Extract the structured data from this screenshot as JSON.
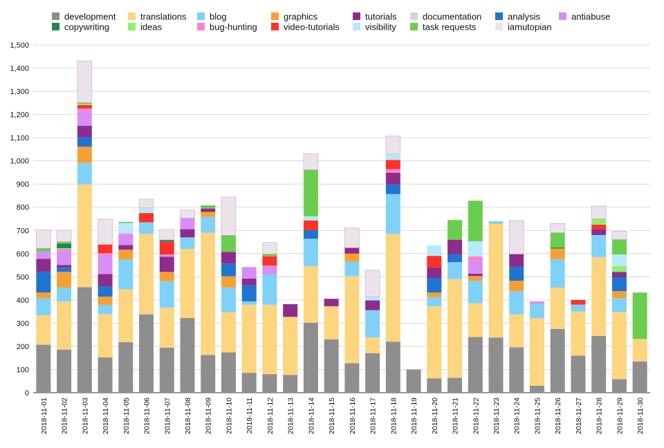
{
  "chart_data": {
    "type": "bar",
    "stacked": true,
    "title": "",
    "xlabel": "",
    "ylabel": "",
    "ylim": [
      0,
      1500
    ],
    "y_ticks": [
      0,
      100,
      200,
      300,
      400,
      500,
      600,
      700,
      800,
      900,
      1000,
      1100,
      1200,
      1300,
      1400,
      1500
    ],
    "y_tick_labels": [
      "0",
      "100",
      "200",
      "300",
      "400",
      "500",
      "600",
      "700",
      "800",
      "900",
      "1,000",
      "1,100",
      "1,200",
      "1,300",
      "1,400",
      "1,500"
    ],
    "grid": true,
    "legend_position": "top",
    "categories": [
      "2018-11-01",
      "2018-11-02",
      "2018-11-03",
      "2018-11-04",
      "2018-11-05",
      "2018-11-06",
      "2018-11-07",
      "2018-11-08",
      "2018-11-09",
      "2018-11-10",
      "2018-11-11",
      "2018-11-12",
      "2018-11-13",
      "2018-11-14",
      "2018-11-15",
      "2018-11-16",
      "2018-11-17",
      "2018-11-18",
      "2018-11-19",
      "2018-11-20",
      "2018-11-21",
      "2018-11-22",
      "2018-11-23",
      "2018-11-24",
      "2018-11-25",
      "2018-11-26",
      "2018-11-27",
      "2018-11-28",
      "2018-11-29",
      "2018-11-30"
    ],
    "series": [
      {
        "name": "development",
        "color": "#8e8e8e",
        "values": [
          207,
          186,
          455,
          152,
          218,
          338,
          194,
          322,
          163,
          174,
          86,
          80,
          77,
          302,
          230,
          127,
          170,
          220,
          100,
          62,
          64,
          240,
          238,
          196,
          30,
          275,
          160,
          245,
          58,
          135
        ]
      },
      {
        "name": "translations",
        "color": "#fcd57e",
        "values": [
          127,
          207,
          443,
          187,
          228,
          348,
          173,
          298,
          527,
          173,
          294,
          300,
          250,
          244,
          143,
          376,
          68,
          465,
          0,
          310,
          426,
          145,
          490,
          142,
          292,
          178,
          190,
          340,
          290,
          97
        ]
      },
      {
        "name": "blog",
        "color": "#7fd1f8",
        "values": [
          73,
          60,
          93,
          40,
          128,
          49,
          114,
          50,
          68,
          107,
          14,
          130,
          0,
          118,
          0,
          62,
          118,
          172,
          0,
          40,
          73,
          98,
          12,
          100,
          62,
          123,
          30,
          95,
          60,
          0
        ]
      },
      {
        "name": "graphics",
        "color": "#f6a033",
        "values": [
          25,
          68,
          70,
          35,
          43,
          0,
          40,
          0,
          22,
          48,
          0,
          0,
          0,
          0,
          0,
          35,
          0,
          0,
          0,
          20,
          0,
          20,
          0,
          45,
          0,
          46,
          0,
          0,
          30,
          0
        ]
      },
      {
        "name": "analysis",
        "color": "#1f74d0",
        "values": [
          90,
          18,
          40,
          45,
          0,
          0,
          0,
          0,
          0,
          55,
          70,
          0,
          0,
          37,
          0,
          0,
          0,
          40,
          0,
          63,
          35,
          0,
          0,
          60,
          0,
          0,
          0,
          0,
          60,
          0
        ]
      },
      {
        "name": "tutorials",
        "color": "#8e2c8c",
        "values": [
          55,
          12,
          50,
          53,
          20,
          0,
          65,
          35,
          15,
          50,
          28,
          0,
          55,
          0,
          32,
          25,
          42,
          52,
          0,
          45,
          62,
          10,
          0,
          55,
          0,
          0,
          0,
          25,
          23,
          0
        ]
      },
      {
        "name": "antiabuse",
        "color": "#d68ef5",
        "values": [
          33,
          60,
          65,
          80,
          45,
          0,
          10,
          48,
          0,
          0,
          50,
          38,
          0,
          0,
          0,
          0,
          0,
          0,
          0,
          0,
          0,
          55,
          0,
          0,
          10,
          0,
          0,
          0,
          0,
          0
        ]
      },
      {
        "name": "bug-hunting",
        "color": "#fc83d2",
        "values": [
          0,
          8,
          10,
          10,
          5,
          0,
          0,
          0,
          0,
          0,
          0,
          0,
          0,
          0,
          0,
          0,
          0,
          15,
          0,
          0,
          0,
          20,
          0,
          0,
          0,
          0,
          0,
          0,
          0,
          0
        ]
      },
      {
        "name": "video-tutorials",
        "color": "#fd3126",
        "values": [
          0,
          0,
          15,
          37,
          0,
          40,
          55,
          0,
          0,
          0,
          0,
          40,
          0,
          42,
          0,
          0,
          0,
          40,
          0,
          50,
          0,
          0,
          0,
          0,
          0,
          0,
          20,
          20,
          0,
          0
        ]
      },
      {
        "name": "ideas",
        "color": "#90f06a",
        "values": [
          0,
          4,
          5,
          0,
          0,
          0,
          0,
          0,
          5,
          0,
          0,
          0,
          0,
          0,
          0,
          0,
          0,
          0,
          0,
          0,
          0,
          0,
          0,
          0,
          0,
          0,
          0,
          25,
          25,
          0
        ]
      },
      {
        "name": "copywriting",
        "color": "#1c8a4f",
        "values": [
          0,
          20,
          0,
          0,
          0,
          0,
          8,
          0,
          3,
          0,
          0,
          0,
          0,
          0,
          0,
          0,
          0,
          0,
          0,
          0,
          0,
          0,
          0,
          0,
          0,
          5,
          0,
          0,
          0,
          0
        ]
      },
      {
        "name": "visibility",
        "color": "#b6e9fb",
        "values": [
          0,
          0,
          0,
          0,
          45,
          22,
          0,
          0,
          0,
          0,
          0,
          0,
          0,
          18,
          0,
          0,
          15,
          25,
          0,
          45,
          0,
          65,
          0,
          0,
          0,
          0,
          0,
          0,
          50,
          0
        ]
      },
      {
        "name": "task requests",
        "color": "#6acd4f",
        "values": [
          13,
          8,
          5,
          0,
          5,
          0,
          0,
          0,
          5,
          72,
          0,
          10,
          0,
          200,
          0,
          0,
          0,
          0,
          0,
          0,
          85,
          175,
          0,
          0,
          0,
          63,
          0,
          0,
          65,
          200
        ]
      },
      {
        "name": "documentation",
        "color": "#d5d5d5",
        "values": [
          0,
          0,
          0,
          0,
          0,
          0,
          0,
          0,
          0,
          0,
          0,
          0,
          0,
          0,
          0,
          0,
          0,
          0,
          0,
          0,
          0,
          0,
          0,
          0,
          0,
          0,
          0,
          0,
          0,
          0
        ]
      },
      {
        "name": "iamutopian",
        "color": "#ebe3ea",
        "values": [
          80,
          50,
          180,
          110,
          0,
          38,
          45,
          35,
          0,
          165,
          0,
          50,
          0,
          70,
          0,
          85,
          115,
          78,
          0,
          0,
          0,
          0,
          0,
          145,
          0,
          40,
          0,
          55,
          35,
          0
        ]
      }
    ]
  },
  "legend": {
    "rows": [
      [
        "development",
        "translations",
        "blog",
        "graphics",
        "tutorials",
        "documentation",
        "analysis",
        "antiabuse"
      ],
      [
        "copywriting",
        "ideas",
        "bug-hunting",
        "video-tutorials",
        "visibility",
        "task requests",
        "iamutopian"
      ]
    ]
  }
}
